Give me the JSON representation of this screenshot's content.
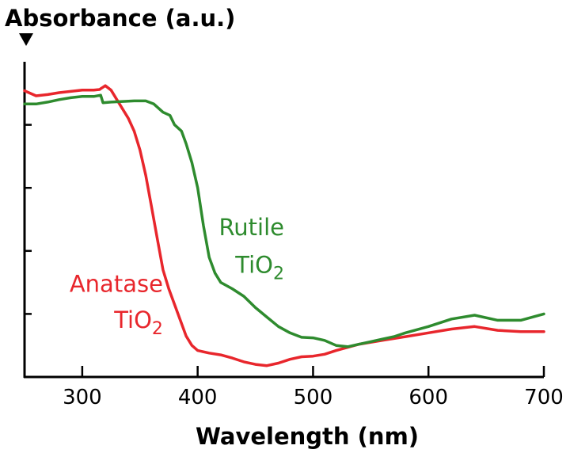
{
  "chart_data": {
    "type": "line",
    "title": "",
    "ylabel": "Absorbance (a.u.)",
    "xlabel": "Wavelength (nm)",
    "xlim": [
      250,
      700
    ],
    "ylim": [
      0,
      5
    ],
    "x_ticks": [
      "300",
      "400",
      "500",
      "600",
      "700"
    ],
    "y_ticks_labeled": false,
    "grid": false,
    "legend": "none",
    "series": [
      {
        "color": "#E8262C",
        "points": [
          [
            250,
            4.54
          ],
          [
            260,
            4.46
          ],
          [
            270,
            4.48
          ],
          [
            280,
            4.51
          ],
          [
            290,
            4.53
          ],
          [
            300,
            4.55
          ],
          [
            310,
            4.55
          ],
          [
            315,
            4.56
          ],
          [
            320,
            4.62
          ],
          [
            325,
            4.55
          ],
          [
            330,
            4.4
          ],
          [
            335,
            4.25
          ],
          [
            340,
            4.1
          ],
          [
            345,
            3.9
          ],
          [
            350,
            3.6
          ],
          [
            355,
            3.2
          ],
          [
            360,
            2.7
          ],
          [
            365,
            2.2
          ],
          [
            370,
            1.7
          ],
          [
            375,
            1.4
          ],
          [
            380,
            1.15
          ],
          [
            385,
            0.9
          ],
          [
            390,
            0.65
          ],
          [
            395,
            0.5
          ],
          [
            400,
            0.42
          ],
          [
            410,
            0.38
          ],
          [
            420,
            0.35
          ],
          [
            430,
            0.3
          ],
          [
            440,
            0.24
          ],
          [
            450,
            0.2
          ],
          [
            460,
            0.18
          ],
          [
            470,
            0.22
          ],
          [
            480,
            0.28
          ],
          [
            490,
            0.32
          ],
          [
            500,
            0.33
          ],
          [
            510,
            0.36
          ],
          [
            520,
            0.42
          ],
          [
            530,
            0.47
          ],
          [
            540,
            0.52
          ],
          [
            560,
            0.58
          ],
          [
            580,
            0.64
          ],
          [
            600,
            0.7
          ],
          [
            620,
            0.76
          ],
          [
            640,
            0.8
          ],
          [
            660,
            0.74
          ],
          [
            680,
            0.72
          ],
          [
            700,
            0.72
          ]
        ]
      },
      {
        "color": "#2E8B2E",
        "points": [
          [
            250,
            4.33
          ],
          [
            260,
            4.33
          ],
          [
            270,
            4.36
          ],
          [
            280,
            4.4
          ],
          [
            290,
            4.43
          ],
          [
            300,
            4.45
          ],
          [
            310,
            4.45
          ],
          [
            316,
            4.47
          ],
          [
            318,
            4.35
          ],
          [
            325,
            4.36
          ],
          [
            335,
            4.37
          ],
          [
            345,
            4.38
          ],
          [
            355,
            4.38
          ],
          [
            362,
            4.33
          ],
          [
            370,
            4.2
          ],
          [
            376,
            4.15
          ],
          [
            380,
            4.0
          ],
          [
            386,
            3.9
          ],
          [
            390,
            3.7
          ],
          [
            395,
            3.4
          ],
          [
            400,
            3.0
          ],
          [
            405,
            2.4
          ],
          [
            410,
            1.9
          ],
          [
            415,
            1.65
          ],
          [
            420,
            1.5
          ],
          [
            430,
            1.4
          ],
          [
            440,
            1.28
          ],
          [
            450,
            1.1
          ],
          [
            460,
            0.95
          ],
          [
            470,
            0.8
          ],
          [
            480,
            0.7
          ],
          [
            490,
            0.63
          ],
          [
            500,
            0.62
          ],
          [
            510,
            0.58
          ],
          [
            520,
            0.5
          ],
          [
            530,
            0.48
          ],
          [
            540,
            0.52
          ],
          [
            550,
            0.56
          ],
          [
            560,
            0.6
          ],
          [
            570,
            0.64
          ],
          [
            580,
            0.7
          ],
          [
            600,
            0.8
          ],
          [
            620,
            0.92
          ],
          [
            640,
            0.98
          ],
          [
            660,
            0.9
          ],
          [
            680,
            0.9
          ],
          [
            700,
            1.0
          ]
        ]
      }
    ],
    "annotations": [
      {
        "color": "#2E8B2E",
        "line1": "Rutile",
        "line2_main": "TiO",
        "line2_sub": "2",
        "x": 475,
        "y1": 2.25,
        "y2": 1.65
      },
      {
        "color": "#E8262C",
        "line1": "Anatase",
        "line2_main": "TiO",
        "line2_sub": "2",
        "x": 370,
        "y1": 1.35,
        "y2": 0.78
      }
    ],
    "y_axis_arrow": "down"
  }
}
